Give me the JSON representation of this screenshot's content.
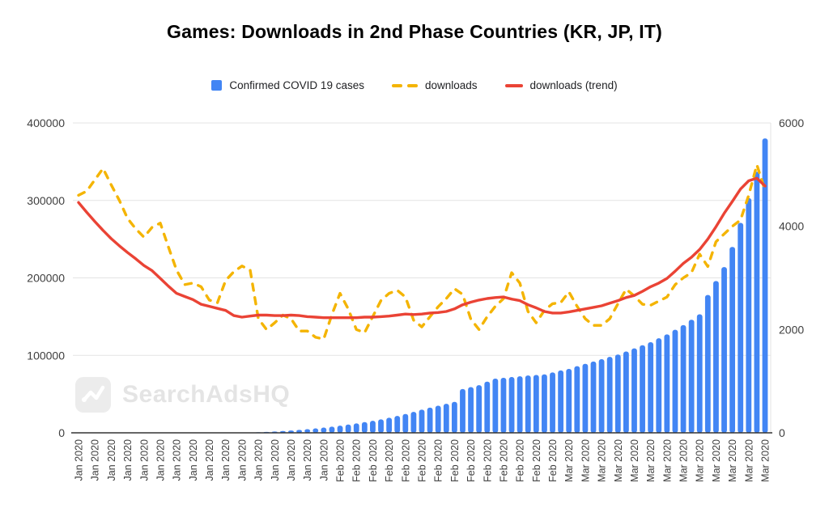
{
  "title": "Games: Downloads in 2nd Phase Countries (KR, JP, IT)",
  "watermark": {
    "text": "SearchAdsHQ"
  },
  "legend": [
    {
      "label": "Confirmed COVID 19 cases",
      "color": "#4285F4",
      "swatch": "square"
    },
    {
      "label": "downloads",
      "color": "#F4B400",
      "swatch": "dashes"
    },
    {
      "label": "downloads (trend)",
      "color": "#EA4335",
      "swatch": "dash"
    }
  ],
  "chart_data": {
    "type": "combo",
    "background": "#ffffff",
    "grid_color": "#e3e3e3",
    "baseline_color": "#333333",
    "axis_text_color": "#3f3f3f",
    "left_axis": {
      "min": 0,
      "max": 400000,
      "ticks": [
        0,
        100000,
        200000,
        300000,
        400000
      ]
    },
    "right_axis": {
      "min": 0,
      "max": 6000,
      "ticks": [
        0,
        2000,
        4000,
        6000
      ]
    },
    "x_label_every": 2,
    "x_tick_labels": [
      "Jan 2020",
      "Jan 2020",
      "Jan 2020",
      "Jan 2020",
      "Jan 2020",
      "Jan 2020",
      "Jan 2020",
      "Jan 2020",
      "Jan 2020",
      "Jan 2020",
      "Jan 2020",
      "Jan 2020",
      "Jan 2020",
      "Jan 2020",
      "Jan 2020",
      "Jan 2020",
      "Feb 2020",
      "Feb 2020",
      "Feb 2020",
      "Feb 2020",
      "Feb 2020",
      "Feb 2020",
      "Feb 2020",
      "Feb 2020",
      "Feb 2020",
      "Feb 2020",
      "Feb 2020",
      "Feb 2020",
      "Feb 2020",
      "Feb 2020",
      "Mar 2020",
      "Mar 2020",
      "Mar 2020",
      "Mar 2020",
      "Mar 2020",
      "Mar 2020",
      "Mar 2020",
      "Mar 2020",
      "Mar 2020",
      "Mar 2020",
      "Mar 2020",
      "Mar 2020",
      "Mar 2020"
    ],
    "series": [
      {
        "name": "Confirmed COVID 19 cases",
        "type": "bar",
        "axis": "left",
        "color": "#4285F4",
        "values": [
          0,
          0,
          0,
          0,
          0,
          0,
          0,
          0,
          0,
          0,
          0,
          0,
          0,
          0,
          0,
          0,
          0,
          0,
          0,
          0,
          300,
          500,
          800,
          1200,
          1700,
          2300,
          3000,
          3800,
          4700,
          5700,
          6800,
          8000,
          9300,
          10700,
          12200,
          13800,
          15500,
          17400,
          19500,
          21800,
          24300,
          27000,
          29900,
          32500,
          35000,
          37500,
          40000,
          56500,
          59000,
          61500,
          66000,
          70000,
          71000,
          72000,
          73000,
          74000,
          74700,
          75400,
          78000,
          80500,
          82500,
          86000,
          89000,
          92000,
          95000,
          98000,
          101000,
          105000,
          109000,
          113000,
          117000,
          122000,
          127000,
          133000,
          139000,
          146000,
          153000,
          178000,
          196000,
          214000,
          240000,
          271000,
          303000,
          337000,
          380000
        ]
      },
      {
        "name": "downloads",
        "type": "line-dashed",
        "axis": "right",
        "color": "#F4B400",
        "values": [
          4600,
          4680,
          4900,
          5120,
          4800,
          4500,
          4150,
          3950,
          3790,
          3980,
          4060,
          3600,
          3150,
          2870,
          2900,
          2830,
          2570,
          2520,
          2950,
          3120,
          3230,
          3150,
          2210,
          2000,
          2130,
          2280,
          2210,
          1970,
          1970,
          1850,
          1815,
          2290,
          2700,
          2400,
          2000,
          1940,
          2250,
          2560,
          2700,
          2760,
          2630,
          2180,
          2050,
          2250,
          2440,
          2600,
          2790,
          2680,
          2200,
          2000,
          2250,
          2450,
          2600,
          3100,
          2900,
          2350,
          2130,
          2370,
          2500,
          2520,
          2730,
          2450,
          2210,
          2080,
          2080,
          2210,
          2500,
          2780,
          2650,
          2490,
          2470,
          2550,
          2630,
          2870,
          3000,
          3100,
          3460,
          3220,
          3700,
          3850,
          4000,
          4120,
          4600,
          5190,
          4690
        ]
      },
      {
        "name": "downloads (trend)",
        "type": "line",
        "axis": "right",
        "color": "#EA4335",
        "values": [
          4460,
          4270,
          4090,
          3920,
          3760,
          3620,
          3490,
          3370,
          3240,
          3140,
          2990,
          2840,
          2700,
          2640,
          2580,
          2490,
          2450,
          2410,
          2370,
          2270,
          2240,
          2260,
          2280,
          2280,
          2270,
          2270,
          2280,
          2270,
          2250,
          2240,
          2230,
          2230,
          2230,
          2230,
          2230,
          2240,
          2240,
          2250,
          2260,
          2280,
          2300,
          2290,
          2300,
          2320,
          2330,
          2350,
          2400,
          2480,
          2530,
          2570,
          2600,
          2620,
          2630,
          2590,
          2560,
          2480,
          2420,
          2350,
          2320,
          2320,
          2340,
          2370,
          2400,
          2430,
          2460,
          2510,
          2560,
          2620,
          2660,
          2740,
          2830,
          2900,
          2990,
          3130,
          3280,
          3400,
          3550,
          3750,
          3990,
          4250,
          4480,
          4720,
          4880,
          4930,
          4780
        ]
      }
    ]
  }
}
